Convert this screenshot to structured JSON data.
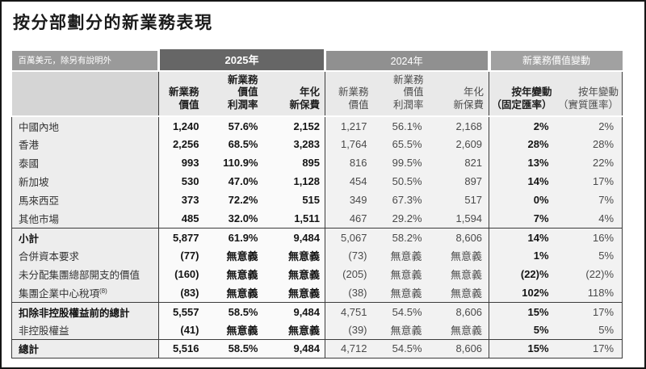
{
  "title": "按分部劃分的新業務表現",
  "colors": {
    "band_2025_bg": "#666666",
    "band_2024_bg": "#909090",
    "band_change_bg": "#a1a1a1",
    "band_label_bg": "#9a9a9a",
    "subheader_bg": "#e9e9e9",
    "body_2025_bg": "#fafafa",
    "body_other_bg": "#f2f2f2",
    "rule_line": "#3c3c3c"
  },
  "table": {
    "unit_note": "百萬美元，除另有說明外",
    "bands": {
      "y2025": "2025年",
      "y2024": "2024年",
      "change": "新業務價值變動"
    },
    "sub_headers": {
      "nbv": "新業務\n價值",
      "margin": "新業務\n價值\n利潤率",
      "anp": "年化\n新保費",
      "yoy_fixed": "按年變動\n（固定匯率）",
      "yoy_actual": "按年變動\n（實質匯率）"
    },
    "rows": [
      {
        "label": "中國內地",
        "y2025": [
          "1,240",
          "57.6%",
          "2,152"
        ],
        "y2024": [
          "1,217",
          "56.1%",
          "2,168"
        ],
        "change": [
          "2%",
          "2%"
        ]
      },
      {
        "label": "香港",
        "y2025": [
          "2,256",
          "68.5%",
          "3,283"
        ],
        "y2024": [
          "1,764",
          "65.5%",
          "2,609"
        ],
        "change": [
          "28%",
          "28%"
        ]
      },
      {
        "label": "泰國",
        "y2025": [
          "993",
          "110.9%",
          "895"
        ],
        "y2024": [
          "816",
          "99.5%",
          "821"
        ],
        "change": [
          "13%",
          "22%"
        ]
      },
      {
        "label": "新加坡",
        "y2025": [
          "530",
          "47.0%",
          "1,128"
        ],
        "y2024": [
          "454",
          "50.5%",
          "897"
        ],
        "change": [
          "14%",
          "17%"
        ]
      },
      {
        "label": "馬來西亞",
        "y2025": [
          "373",
          "72.2%",
          "515"
        ],
        "y2024": [
          "349",
          "67.3%",
          "517"
        ],
        "change": [
          "0%",
          "7%"
        ]
      },
      {
        "label": "其他市場",
        "y2025": [
          "485",
          "32.0%",
          "1,511"
        ],
        "y2024": [
          "467",
          "29.2%",
          "1,594"
        ],
        "change": [
          "7%",
          "4%"
        ]
      },
      {
        "label": "小計",
        "bold": true,
        "top_rule": true,
        "y2025": [
          "5,877",
          "61.9%",
          "9,484"
        ],
        "y2024": [
          "5,067",
          "58.2%",
          "8,606"
        ],
        "change": [
          "14%",
          "16%"
        ]
      },
      {
        "label": "合併資本要求",
        "y2025": [
          "(77)",
          "無意義",
          "無意義"
        ],
        "y2024": [
          "(73)",
          "無意義",
          "無意義"
        ],
        "change": [
          "1%",
          "5%"
        ]
      },
      {
        "label": "未分配集團總部開支的價值",
        "y2025": [
          "(160)",
          "無意義",
          "無意義"
        ],
        "y2024": [
          "(205)",
          "無意義",
          "無意義"
        ],
        "change": [
          "(22)%",
          "(22)%"
        ]
      },
      {
        "label": "集團企業中心稅項",
        "label_sup": "(8)",
        "y2025": [
          "(83)",
          "無意義",
          "無意義"
        ],
        "y2024": [
          "(38)",
          "無意義",
          "無意義"
        ],
        "change": [
          "102%",
          "118%"
        ]
      },
      {
        "label": "扣除非控股權益前的總計",
        "bold": true,
        "top_rule": true,
        "y2025": [
          "5,557",
          "58.5%",
          "9,484"
        ],
        "y2024": [
          "4,751",
          "54.5%",
          "8,606"
        ],
        "change": [
          "15%",
          "17%"
        ]
      },
      {
        "label": "非控股權益",
        "y2025": [
          "(41)",
          "無意義",
          "無意義"
        ],
        "y2024": [
          "(39)",
          "無意義",
          "無意義"
        ],
        "change": [
          "5%",
          "5%"
        ]
      },
      {
        "label": "總計",
        "bold": true,
        "top_rule": true,
        "y2025": [
          "5,516",
          "58.5%",
          "9,484"
        ],
        "y2024": [
          "4,712",
          "54.5%",
          "8,606"
        ],
        "change": [
          "15%",
          "17%"
        ]
      }
    ]
  }
}
